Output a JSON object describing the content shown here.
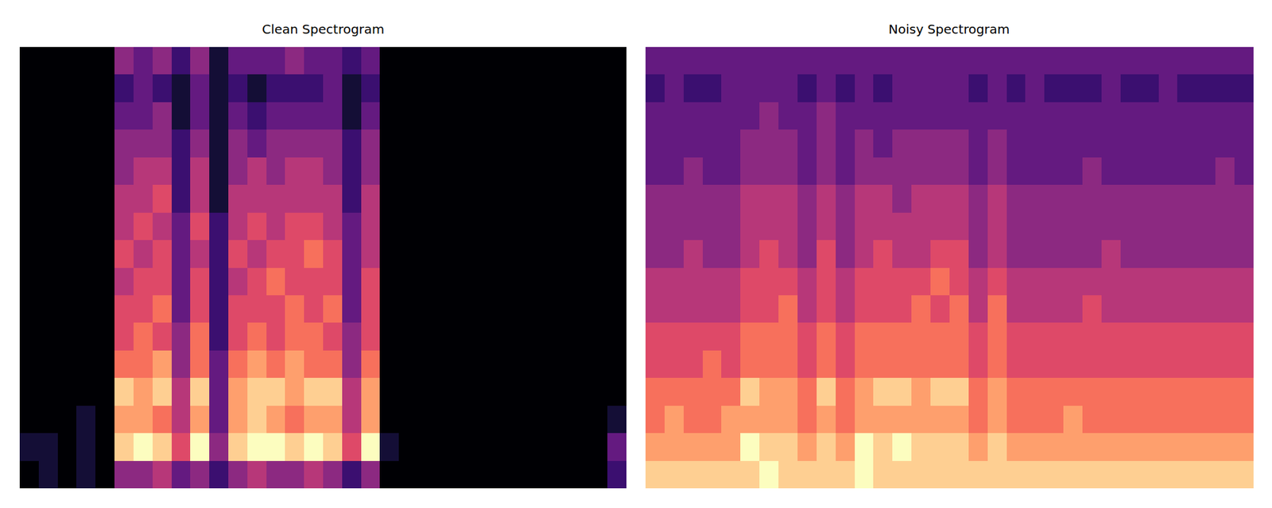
{
  "chart_data": [
    {
      "type": "heatmap",
      "title": "Clean Spectrogram",
      "zlim": [
        0,
        10
      ],
      "tick_labels": false,
      "cells": [
        [
          0,
          1,
          0,
          1,
          0,
          4,
          4,
          5,
          3,
          4,
          2,
          4,
          5,
          4,
          4,
          5,
          4,
          2,
          4,
          0,
          0,
          0,
          0,
          0,
          0,
          0,
          0,
          0,
          0,
          0,
          0,
          2
        ],
        [
          1,
          1,
          0,
          1,
          0,
          9,
          10,
          9,
          6,
          10,
          4,
          9,
          10,
          10,
          9,
          10,
          9,
          6,
          10,
          1,
          0,
          0,
          0,
          0,
          0,
          0,
          0,
          0,
          0,
          0,
          0,
          3
        ],
        [
          0,
          0,
          0,
          1,
          0,
          8,
          8,
          7,
          5,
          8,
          3,
          8,
          9,
          8,
          7,
          8,
          8,
          5,
          8,
          0,
          0,
          0,
          0,
          0,
          0,
          0,
          0,
          0,
          0,
          0,
          0,
          1
        ],
        [
          0,
          0,
          0,
          0,
          0,
          9,
          8,
          9,
          5,
          9,
          3,
          8,
          9,
          9,
          8,
          9,
          9,
          5,
          8,
          0,
          0,
          0,
          0,
          0,
          0,
          0,
          0,
          0,
          0,
          0,
          0,
          0
        ],
        [
          0,
          0,
          0,
          0,
          0,
          7,
          7,
          8,
          4,
          7,
          3,
          7,
          8,
          7,
          8,
          7,
          7,
          4,
          7,
          0,
          0,
          0,
          0,
          0,
          0,
          0,
          0,
          0,
          0,
          0,
          0,
          0
        ],
        [
          0,
          0,
          0,
          0,
          0,
          6,
          7,
          6,
          4,
          7,
          2,
          6,
          7,
          6,
          7,
          7,
          6,
          4,
          6,
          0,
          0,
          0,
          0,
          0,
          0,
          0,
          0,
          0,
          0,
          0,
          0,
          0
        ],
        [
          0,
          0,
          0,
          0,
          0,
          6,
          6,
          7,
          3,
          6,
          2,
          6,
          6,
          6,
          7,
          6,
          7,
          3,
          6,
          0,
          0,
          0,
          0,
          0,
          0,
          0,
          0,
          0,
          0,
          0,
          0,
          0
        ],
        [
          0,
          0,
          0,
          0,
          0,
          5,
          6,
          6,
          3,
          6,
          2,
          5,
          6,
          7,
          6,
          6,
          6,
          3,
          6,
          0,
          0,
          0,
          0,
          0,
          0,
          0,
          0,
          0,
          0,
          0,
          0,
          0
        ],
        [
          0,
          0,
          0,
          0,
          0,
          6,
          5,
          6,
          3,
          5,
          2,
          6,
          5,
          6,
          6,
          7,
          6,
          3,
          5,
          0,
          0,
          0,
          0,
          0,
          0,
          0,
          0,
          0,
          0,
          0,
          0,
          0
        ],
        [
          0,
          0,
          0,
          0,
          0,
          5,
          6,
          5,
          3,
          6,
          2,
          5,
          6,
          5,
          6,
          6,
          5,
          3,
          5,
          0,
          0,
          0,
          0,
          0,
          0,
          0,
          0,
          0,
          0,
          0,
          0,
          0
        ],
        [
          0,
          0,
          0,
          0,
          0,
          5,
          5,
          6,
          2,
          5,
          1,
          5,
          5,
          5,
          5,
          5,
          5,
          2,
          5,
          0,
          0,
          0,
          0,
          0,
          0,
          0,
          0,
          0,
          0,
          0,
          0,
          0
        ],
        [
          0,
          0,
          0,
          0,
          0,
          4,
          5,
          5,
          2,
          5,
          1,
          4,
          5,
          4,
          5,
          5,
          4,
          2,
          4,
          0,
          0,
          0,
          0,
          0,
          0,
          0,
          0,
          0,
          0,
          0,
          0,
          0
        ],
        [
          0,
          0,
          0,
          0,
          0,
          4,
          4,
          4,
          2,
          4,
          1,
          4,
          3,
          4,
          4,
          4,
          4,
          2,
          4,
          0,
          0,
          0,
          0,
          0,
          0,
          0,
          0,
          0,
          0,
          0,
          0,
          0
        ],
        [
          0,
          0,
          0,
          0,
          0,
          3,
          3,
          4,
          1,
          3,
          1,
          3,
          2,
          3,
          3,
          3,
          3,
          1,
          3,
          0,
          0,
          0,
          0,
          0,
          0,
          0,
          0,
          0,
          0,
          0,
          0,
          0
        ],
        [
          0,
          0,
          0,
          0,
          0,
          2,
          3,
          2,
          1,
          3,
          1,
          2,
          1,
          2,
          2,
          2,
          3,
          1,
          2,
          0,
          0,
          0,
          0,
          0,
          0,
          0,
          0,
          0,
          0,
          0,
          0,
          0
        ],
        [
          0,
          0,
          0,
          0,
          0,
          4,
          3,
          4,
          2,
          4,
          1,
          3,
          3,
          3,
          4,
          3,
          3,
          2,
          3,
          0,
          0,
          0,
          0,
          0,
          0,
          0,
          0,
          0,
          0,
          0,
          0,
          0
        ]
      ]
    },
    {
      "type": "heatmap",
      "title": "Noisy Spectrogram",
      "zlim": [
        0,
        10
      ],
      "tick_labels": false,
      "cells": [
        [
          9,
          9,
          9,
          9,
          9,
          9,
          10,
          9,
          9,
          9,
          9,
          10,
          9,
          9,
          9,
          9,
          9,
          9,
          9,
          9,
          9,
          9,
          9,
          9,
          9,
          9,
          9,
          9,
          9,
          9,
          9,
          9
        ],
        [
          8,
          8,
          8,
          8,
          8,
          10,
          9,
          9,
          8,
          9,
          8,
          10,
          9,
          10,
          9,
          9,
          9,
          8,
          9,
          8,
          8,
          8,
          8,
          8,
          8,
          8,
          8,
          8,
          8,
          8,
          8,
          8
        ],
        [
          7,
          8,
          7,
          7,
          8,
          8,
          8,
          8,
          7,
          8,
          7,
          8,
          8,
          8,
          8,
          8,
          8,
          7,
          8,
          7,
          7,
          7,
          8,
          7,
          7,
          7,
          7,
          7,
          7,
          7,
          7,
          7
        ],
        [
          7,
          7,
          7,
          7,
          7,
          9,
          8,
          8,
          7,
          9,
          7,
          8,
          9,
          9,
          8,
          9,
          9,
          7,
          8,
          7,
          7,
          7,
          7,
          7,
          7,
          7,
          7,
          7,
          7,
          7,
          7,
          7
        ],
        [
          6,
          6,
          6,
          7,
          6,
          7,
          7,
          7,
          6,
          7,
          6,
          7,
          7,
          7,
          7,
          7,
          7,
          6,
          7,
          6,
          6,
          6,
          6,
          6,
          6,
          6,
          6,
          6,
          6,
          6,
          6,
          6
        ],
        [
          6,
          6,
          6,
          6,
          6,
          7,
          7,
          7,
          6,
          7,
          6,
          7,
          7,
          7,
          7,
          7,
          7,
          6,
          7,
          6,
          6,
          6,
          6,
          6,
          6,
          6,
          6,
          6,
          6,
          6,
          6,
          6
        ],
        [
          5,
          5,
          5,
          5,
          5,
          6,
          6,
          7,
          5,
          6,
          5,
          6,
          6,
          6,
          7,
          6,
          7,
          5,
          7,
          5,
          5,
          5,
          5,
          6,
          5,
          5,
          5,
          5,
          5,
          5,
          5,
          5
        ],
        [
          5,
          5,
          5,
          5,
          5,
          6,
          6,
          6,
          5,
          6,
          5,
          6,
          6,
          6,
          6,
          7,
          6,
          5,
          6,
          5,
          5,
          5,
          5,
          5,
          5,
          5,
          5,
          5,
          5,
          5,
          5,
          5
        ],
        [
          4,
          4,
          5,
          4,
          4,
          5,
          6,
          5,
          4,
          6,
          4,
          5,
          6,
          5,
          5,
          6,
          6,
          4,
          5,
          4,
          4,
          4,
          4,
          4,
          5,
          4,
          4,
          4,
          4,
          4,
          4,
          4
        ],
        [
          4,
          4,
          4,
          4,
          4,
          5,
          5,
          5,
          4,
          5,
          4,
          5,
          5,
          5,
          5,
          5,
          5,
          4,
          5,
          4,
          4,
          4,
          4,
          4,
          4,
          4,
          4,
          4,
          4,
          4,
          4,
          4
        ],
        [
          4,
          4,
          4,
          4,
          4,
          5,
          5,
          5,
          4,
          5,
          4,
          5,
          5,
          4,
          5,
          5,
          5,
          4,
          5,
          4,
          4,
          4,
          4,
          4,
          4,
          4,
          4,
          4,
          4,
          4,
          4,
          4
        ],
        [
          3,
          3,
          4,
          3,
          3,
          4,
          4,
          4,
          3,
          4,
          3,
          4,
          4,
          4,
          4,
          4,
          4,
          3,
          4,
          3,
          3,
          3,
          3,
          4,
          3,
          3,
          3,
          3,
          3,
          3,
          4,
          3
        ],
        [
          3,
          3,
          3,
          3,
          3,
          4,
          4,
          4,
          3,
          4,
          3,
          4,
          3,
          4,
          4,
          4,
          4,
          3,
          4,
          3,
          3,
          3,
          3,
          3,
          3,
          3,
          3,
          3,
          3,
          3,
          3,
          3
        ],
        [
          3,
          3,
          3,
          3,
          3,
          3,
          4,
          3,
          3,
          4,
          3,
          3,
          3,
          3,
          3,
          3,
          3,
          3,
          3,
          3,
          3,
          3,
          3,
          3,
          3,
          3,
          3,
          3,
          3,
          3,
          3,
          3
        ],
        [
          2,
          3,
          2,
          2,
          3,
          3,
          3,
          3,
          2,
          3,
          2,
          3,
          2,
          3,
          3,
          3,
          3,
          2,
          3,
          2,
          3,
          2,
          2,
          2,
          3,
          2,
          2,
          3,
          2,
          2,
          2,
          2
        ],
        [
          3,
          3,
          3,
          3,
          3,
          3,
          3,
          3,
          3,
          3,
          3,
          3,
          3,
          3,
          3,
          3,
          3,
          3,
          3,
          3,
          3,
          3,
          3,
          3,
          3,
          3,
          3,
          3,
          3,
          3,
          3,
          3
        ]
      ]
    }
  ]
}
